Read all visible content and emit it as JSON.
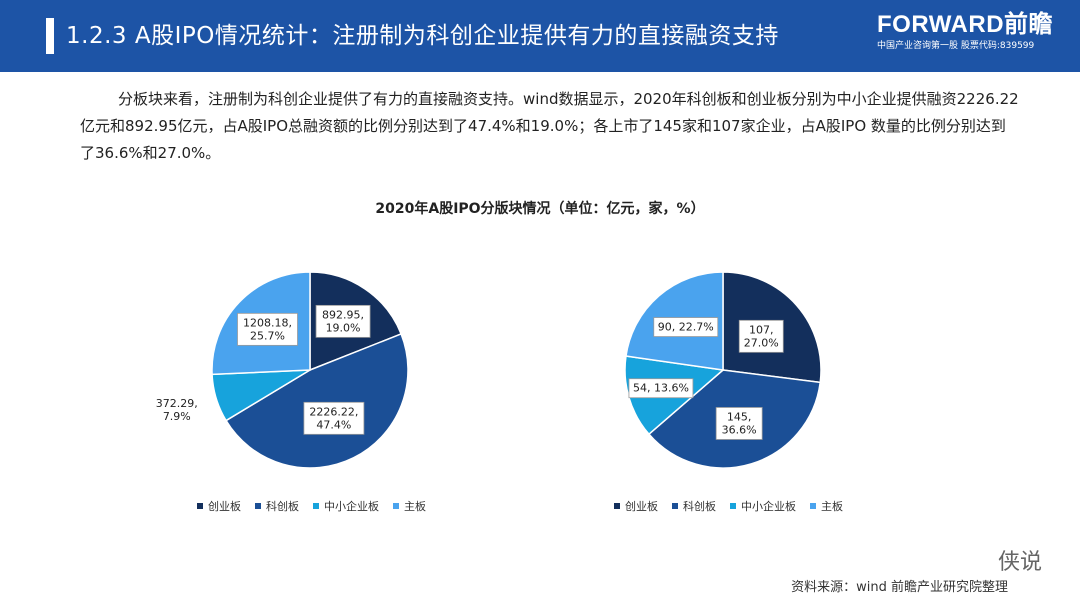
{
  "header": {
    "title": "1.2.3 A股IPO情况统计：注册制为科创企业提供有力的直接融资支持",
    "brand_name": "FORWARD前瞻",
    "brand_sub": "中国产业咨询第一股 股票代码:839599"
  },
  "intro_text": "分板块来看，注册制为科创企业提供了有力的直接融资支持。wind数据显示，2020年科创板和创业板分别为中小企业提供融资2226.22亿元和892.95亿元，占A股IPO总融资额的比例分别达到了47.4%和19.0%；各上市了145家和107家企业，占A股IPO 数量的比例分别达到了36.6%和27.0%。",
  "chart_title": "2020年A股IPO分版块情况（单位：亿元，家，%）",
  "colors": {
    "header_bg": "#1d54a6"
  },
  "chart_data": [
    {
      "type": "pie",
      "title": "2020年A股IPO分版块情况（单位：亿元，家，%）",
      "categories": [
        "创业板",
        "科创板",
        "中小企业板",
        "主板"
      ],
      "values": [
        892.95,
        2226.22,
        372.29,
        1208.18
      ],
      "percents": [
        19.0,
        47.4,
        7.9,
        25.7
      ],
      "colors": [
        "#132f5c",
        "#1b4f96",
        "#17a3dc",
        "#4aa3ee"
      ],
      "labels": [
        "892.95,\n19.0%",
        "2226.22,\n47.4%",
        "372.29,\n7.9%",
        "1208.18,\n25.7%"
      ],
      "legend": "bottom"
    },
    {
      "type": "pie",
      "categories": [
        "创业板",
        "科创板",
        "中小企业板",
        "主板"
      ],
      "values": [
        107,
        145,
        54,
        90
      ],
      "percents": [
        27.0,
        36.6,
        13.6,
        22.7
      ],
      "colors": [
        "#132f5c",
        "#1b4f96",
        "#17a3dc",
        "#4aa3ee"
      ],
      "labels": [
        "107,\n27.0%",
        "145,\n36.6%",
        "54, 13.6%",
        "90, 22.7%"
      ],
      "legend": "bottom"
    }
  ],
  "source_text": "资料来源：wind 前瞻产业研究院整理",
  "watermark_text": "侠说"
}
